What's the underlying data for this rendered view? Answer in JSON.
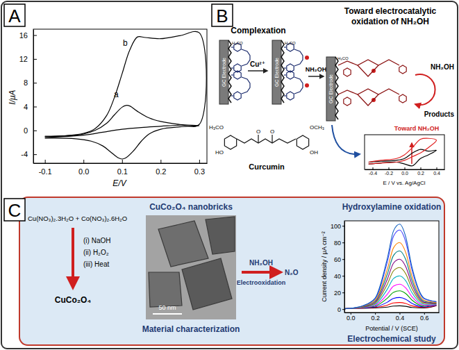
{
  "chart_data": [
    {
      "type": "line",
      "xlabel": "E/V",
      "ylabel": "I/μA",
      "xlim": [
        -0.13,
        0.32
      ],
      "ylim": [
        -5.5,
        17
      ],
      "xticks": [
        -0.1,
        {
          "value": 0,
          "label": "0.0"
        },
        0.1,
        0.2,
        0.3
      ],
      "yticks": [
        -4,
        0,
        4,
        8,
        12,
        16
      ],
      "grid": false,
      "series": [
        {
          "color": "#000000",
          "x": [
            -0.1,
            -0.05,
            0,
            0.03,
            0.06,
            0.08,
            0.1,
            0.11,
            0.12,
            0.14,
            0.17,
            0.2,
            0.25,
            0.3,
            0.25,
            0.2,
            0.17,
            0.15,
            0.13,
            0.11,
            0.1,
            0.09,
            0.07,
            0.05,
            0.02,
            -0.02,
            -0.1
          ],
          "values": [
            -1.0,
            -0.9,
            -0.6,
            0,
            1.2,
            2.6,
            3.9,
            4.2,
            4.1,
            3.2,
            2.1,
            1.5,
            1.0,
            0.8,
            0.6,
            0.2,
            -0.6,
            -1.8,
            -3.4,
            -4.6,
            -4.8,
            -4.6,
            -3.6,
            -2.6,
            -1.8,
            -1.4,
            -1.3
          ]
        },
        {
          "color": "#000000",
          "x": [
            -0.1,
            -0.05,
            0,
            0.03,
            0.06,
            0.08,
            0.1,
            0.12,
            0.14,
            0.16,
            0.2,
            0.25,
            0.3,
            0.3,
            0.25,
            0.2,
            0.15,
            0.1,
            0.05,
            0,
            -0.1
          ],
          "values": [
            -1.0,
            -0.9,
            -0.5,
            0.3,
            2.5,
            5.5,
            9.5,
            13.5,
            15.7,
            15.6,
            15.4,
            15.9,
            16.4,
            1.0,
            0.9,
            0.7,
            0.5,
            0.2,
            -0.3,
            -0.8,
            -1.2
          ]
        }
      ],
      "annotations": [
        {
          "text": "a",
          "x": 0.085,
          "y": 5.6
        },
        {
          "text": "b",
          "x": 0.108,
          "y": 14.2
        }
      ]
    },
    {
      "type": "line",
      "xlabel": "E / V vs. Ag/AgCl",
      "xlim": [
        -0.5,
        0.5
      ],
      "ylim": [
        -0.7,
        1.2
      ],
      "xticks": [
        -0.4,
        -0.2,
        {
          "value": 0,
          "label": "0.0"
        },
        0.2,
        0.4
      ],
      "tick_labels": "x",
      "grid": false,
      "x": [
        -0.45,
        -0.3,
        -0.1,
        0.0,
        0.1,
        0.2,
        0.3,
        0.4,
        0.3,
        0.2,
        0.1,
        0.0,
        -0.1,
        -0.3,
        -0.45
      ],
      "series": [
        {
          "color": "#000000",
          "values": [
            -0.3,
            -0.25,
            -0.2,
            -0.1,
            0.2,
            0.4,
            0.3,
            0.35,
            0.1,
            -0.1,
            -0.5,
            -0.4,
            -0.3,
            -0.35,
            -0.4
          ]
        },
        {
          "color": "#e02020",
          "values": [
            -0.3,
            -0.2,
            -0.1,
            0.1,
            0.5,
            0.95,
            1.0,
            0.9,
            0.5,
            0.2,
            0.0,
            -0.2,
            -0.3,
            -0.35,
            -0.4
          ]
        }
      ]
    },
    {
      "type": "line",
      "title": "Hydroxylamine oxidation",
      "xlabel": "Potential / V (SCE)",
      "ylabel": "Current density / μA cm⁻²",
      "xlim": [
        -0.05,
        0.72
      ],
      "ylim": [
        -4,
        106
      ],
      "xticks": [
        {
          "value": 0,
          "label": "0.0"
        },
        0.2,
        0.4,
        0.6
      ],
      "yticks": [
        0,
        20,
        40,
        60,
        80,
        100
      ],
      "grid": false,
      "x": [
        -0.05,
        0.0,
        0.1,
        0.2,
        0.3,
        0.35,
        0.4,
        0.45,
        0.5,
        0.6,
        0.7
      ],
      "series": [
        {
          "color": "#000000",
          "values": [
            0.5,
            1,
            1.1,
            1.5,
            2.4,
            3.7,
            4,
            3.4,
            2,
            1.5,
            4.2
          ]
        },
        {
          "color": "#ff0000",
          "values": [
            0.5,
            1,
            1.2,
            2,
            4.8,
            7.4,
            8,
            6.8,
            4,
            2,
            4.4
          ]
        },
        {
          "color": "#0000ff",
          "values": [
            0.5,
            1,
            1.4,
            2.7,
            8.4,
            12.9,
            14,
            11.9,
            7,
            2.7,
            4.7
          ]
        },
        {
          "color": "#00a000",
          "values": [
            0.5,
            1,
            1.7,
            3.6,
            13.2,
            20.2,
            22,
            18.7,
            11,
            3.6,
            5.1
          ]
        },
        {
          "color": "#ff00ff",
          "values": [
            0.5,
            1,
            1.9,
            4.6,
            18,
            27.6,
            30,
            25.5,
            15,
            4.6,
            5.5
          ]
        },
        {
          "color": "#00b0c0",
          "values": [
            0.5,
            1,
            2.2,
            5.8,
            24,
            36.8,
            40,
            34,
            20,
            5.8,
            6
          ]
        },
        {
          "color": "#808000",
          "values": [
            0.5,
            1,
            2.5,
            7,
            30,
            46,
            50,
            42.5,
            25,
            7,
            6.5
          ]
        },
        {
          "color": "#800080",
          "values": [
            0.5,
            1,
            2.8,
            8.2,
            36,
            55.2,
            60,
            51,
            30,
            8.2,
            7
          ]
        },
        {
          "color": "#008080",
          "values": [
            0.5,
            1,
            3.1,
            9.4,
            42,
            64.4,
            70,
            59.5,
            35,
            9.4,
            7.5
          ]
        },
        {
          "color": "#ff8000",
          "values": [
            0.5,
            1,
            3.4,
            10.6,
            48,
            73.6,
            80,
            68,
            40,
            10.6,
            8
          ]
        },
        {
          "color": "#4040ff",
          "values": [
            0.5,
            1,
            3.9,
            12.4,
            57,
            87.4,
            95,
            80.8,
            47.5,
            12.4,
            8.8
          ]
        },
        {
          "color": "#1060c0",
          "values": [
            0.5,
            1,
            4.1,
            13.2,
            61.2,
            93.8,
            102,
            86.7,
            51,
            13.2,
            9.1
          ]
        }
      ]
    }
  ],
  "diagram": {
    "panel_labels": [
      "A",
      "B",
      "C"
    ],
    "panel_b": {
      "step1": "Complexation",
      "step2": [
        "Toward electrocatalytic",
        "oxidation of NH₂OH"
      ],
      "electrode": "GC Electrode",
      "reagent1": "Cu²⁺",
      "reagent2": "NH₂OH",
      "substrate": "NH₂OH",
      "products": "Products",
      "molecule": "Curcumin",
      "substituents": [
        "H₃CO",
        "HO",
        "OCH₃",
        "OH",
        "O"
      ],
      "inset_note": "Toward NH₂OH"
    },
    "panel_c": {
      "precursors": "Cu(NO₃)₂.3H₂O + Co(NO₃)₂.6H₂O",
      "steps": [
        "(i)   NaOH",
        "(ii)  H₂O₂",
        "(iii)  Heat"
      ],
      "product": "CuCo₂O₄",
      "image_title": "CuCo₂O₄ nanobricks",
      "scale_bar": "50 nm",
      "image_caption": "Material characterization",
      "reactant": "NH₂OH",
      "product_gas": "N₂O",
      "process": "Electrooxidation",
      "chart_caption": "Electrochemical study"
    }
  }
}
